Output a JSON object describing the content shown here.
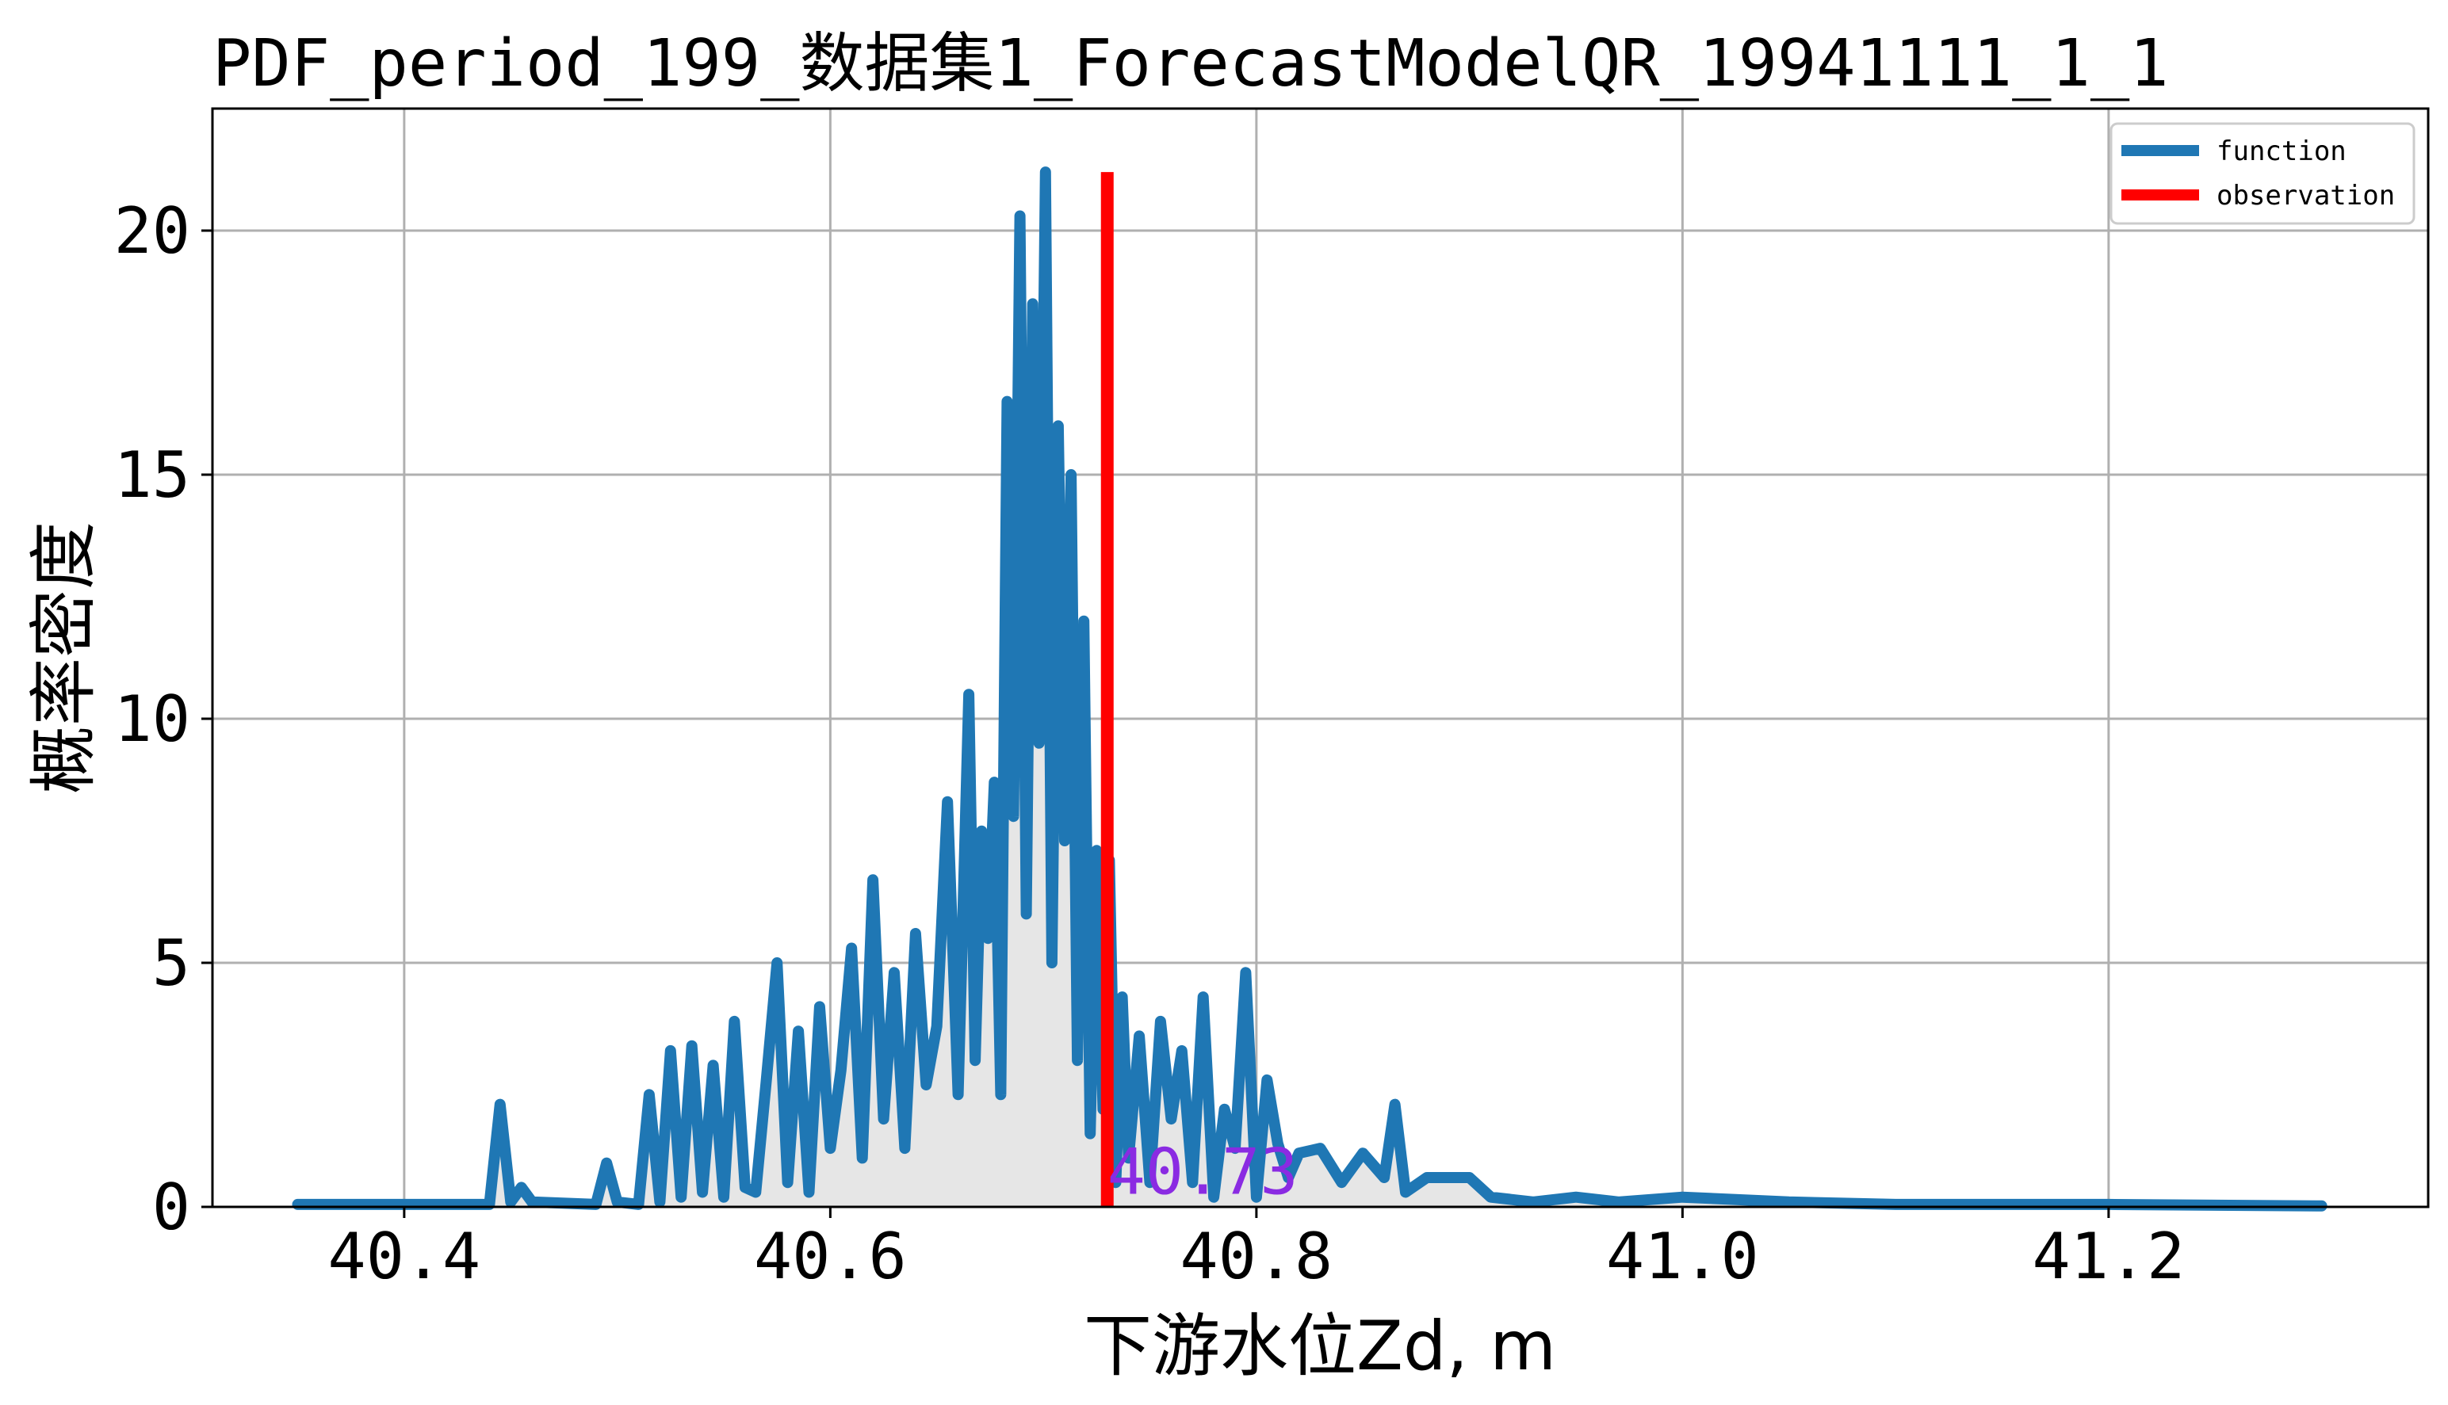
{
  "chart_data": {
    "type": "line",
    "title": "PDF_period_199_数据集1_ForecastModelQR_19941111_1_1",
    "xlabel": "下游水位Zd, m",
    "ylabel": "概率密度",
    "xlim": [
      40.31,
      41.35
    ],
    "ylim": [
      0,
      22.5
    ],
    "xticks": [
      "40.4",
      "40.6",
      "40.8",
      "41.0",
      "41.2"
    ],
    "xtick_values": [
      40.4,
      40.6,
      40.8,
      41.0,
      41.2
    ],
    "yticks": [
      "0",
      "5",
      "10",
      "15",
      "20"
    ],
    "ytick_values": [
      0,
      5,
      10,
      15,
      20
    ],
    "grid": true,
    "legend_position": "top-right",
    "series": [
      {
        "name": "function",
        "color": "#1f77b4",
        "x": [
          40.35,
          40.44,
          40.445,
          40.45,
          40.455,
          40.46,
          40.49,
          40.495,
          40.5,
          40.51,
          40.515,
          40.52,
          40.525,
          40.53,
          40.535,
          40.54,
          40.545,
          40.55,
          40.555,
          40.56,
          40.565,
          40.57,
          40.575,
          40.58,
          40.585,
          40.59,
          40.595,
          40.6,
          40.605,
          40.61,
          40.615,
          40.62,
          40.625,
          40.63,
          40.635,
          40.64,
          40.645,
          40.65,
          40.655,
          40.66,
          40.665,
          40.668,
          40.671,
          40.674,
          40.677,
          40.68,
          40.683,
          40.686,
          40.689,
          40.692,
          40.695,
          40.698,
          40.701,
          40.704,
          40.707,
          40.71,
          40.713,
          40.716,
          40.719,
          40.722,
          40.725,
          40.728,
          40.731,
          40.734,
          40.737,
          40.74,
          40.745,
          40.75,
          40.755,
          40.76,
          40.765,
          40.77,
          40.775,
          40.78,
          40.785,
          40.79,
          40.795,
          40.8,
          40.805,
          40.81,
          40.815,
          40.82,
          40.83,
          40.84,
          40.85,
          40.86,
          40.865,
          40.87,
          40.88,
          40.9,
          40.91,
          40.93,
          40.95,
          40.97,
          41.0,
          41.05,
          41.1,
          41.2,
          41.3
        ],
        "y": [
          0.05,
          0.05,
          2.1,
          0.1,
          0.4,
          0.1,
          0.05,
          0.9,
          0.1,
          0.05,
          2.3,
          0.1,
          3.2,
          0.2,
          3.3,
          0.3,
          2.9,
          0.2,
          3.8,
          0.4,
          0.3,
          2.6,
          5.0,
          0.5,
          3.6,
          0.3,
          4.1,
          1.2,
          2.8,
          5.3,
          1.0,
          6.7,
          1.8,
          4.8,
          1.2,
          5.6,
          2.5,
          3.7,
          8.3,
          2.3,
          10.5,
          3.0,
          7.7,
          5.5,
          8.7,
          2.3,
          16.5,
          8.0,
          20.3,
          6.0,
          18.5,
          9.5,
          21.2,
          5.0,
          16.0,
          7.5,
          15.0,
          3.0,
          12.0,
          1.5,
          7.3,
          2.0,
          7.1,
          0.5,
          4.3,
          1.0,
          3.5,
          0.5,
          3.8,
          1.8,
          3.2,
          0.5,
          4.3,
          0.2,
          2.0,
          1.2,
          4.8,
          0.2,
          2.6,
          1.3,
          0.6,
          1.1,
          1.2,
          0.5,
          1.1,
          0.6,
          2.1,
          0.3,
          0.6,
          0.6,
          0.2,
          0.1,
          0.2,
          0.1,
          0.2,
          0.1,
          0.05,
          0.05,
          0.02
        ]
      },
      {
        "name": "observation",
        "color": "#ff0000",
        "x": [
          40.73,
          40.73
        ],
        "y": [
          0,
          21.2
        ]
      }
    ],
    "annotations": [
      {
        "text": "40.73",
        "x": 40.73,
        "y": 0.2,
        "color": "#8a2be2"
      }
    ]
  }
}
